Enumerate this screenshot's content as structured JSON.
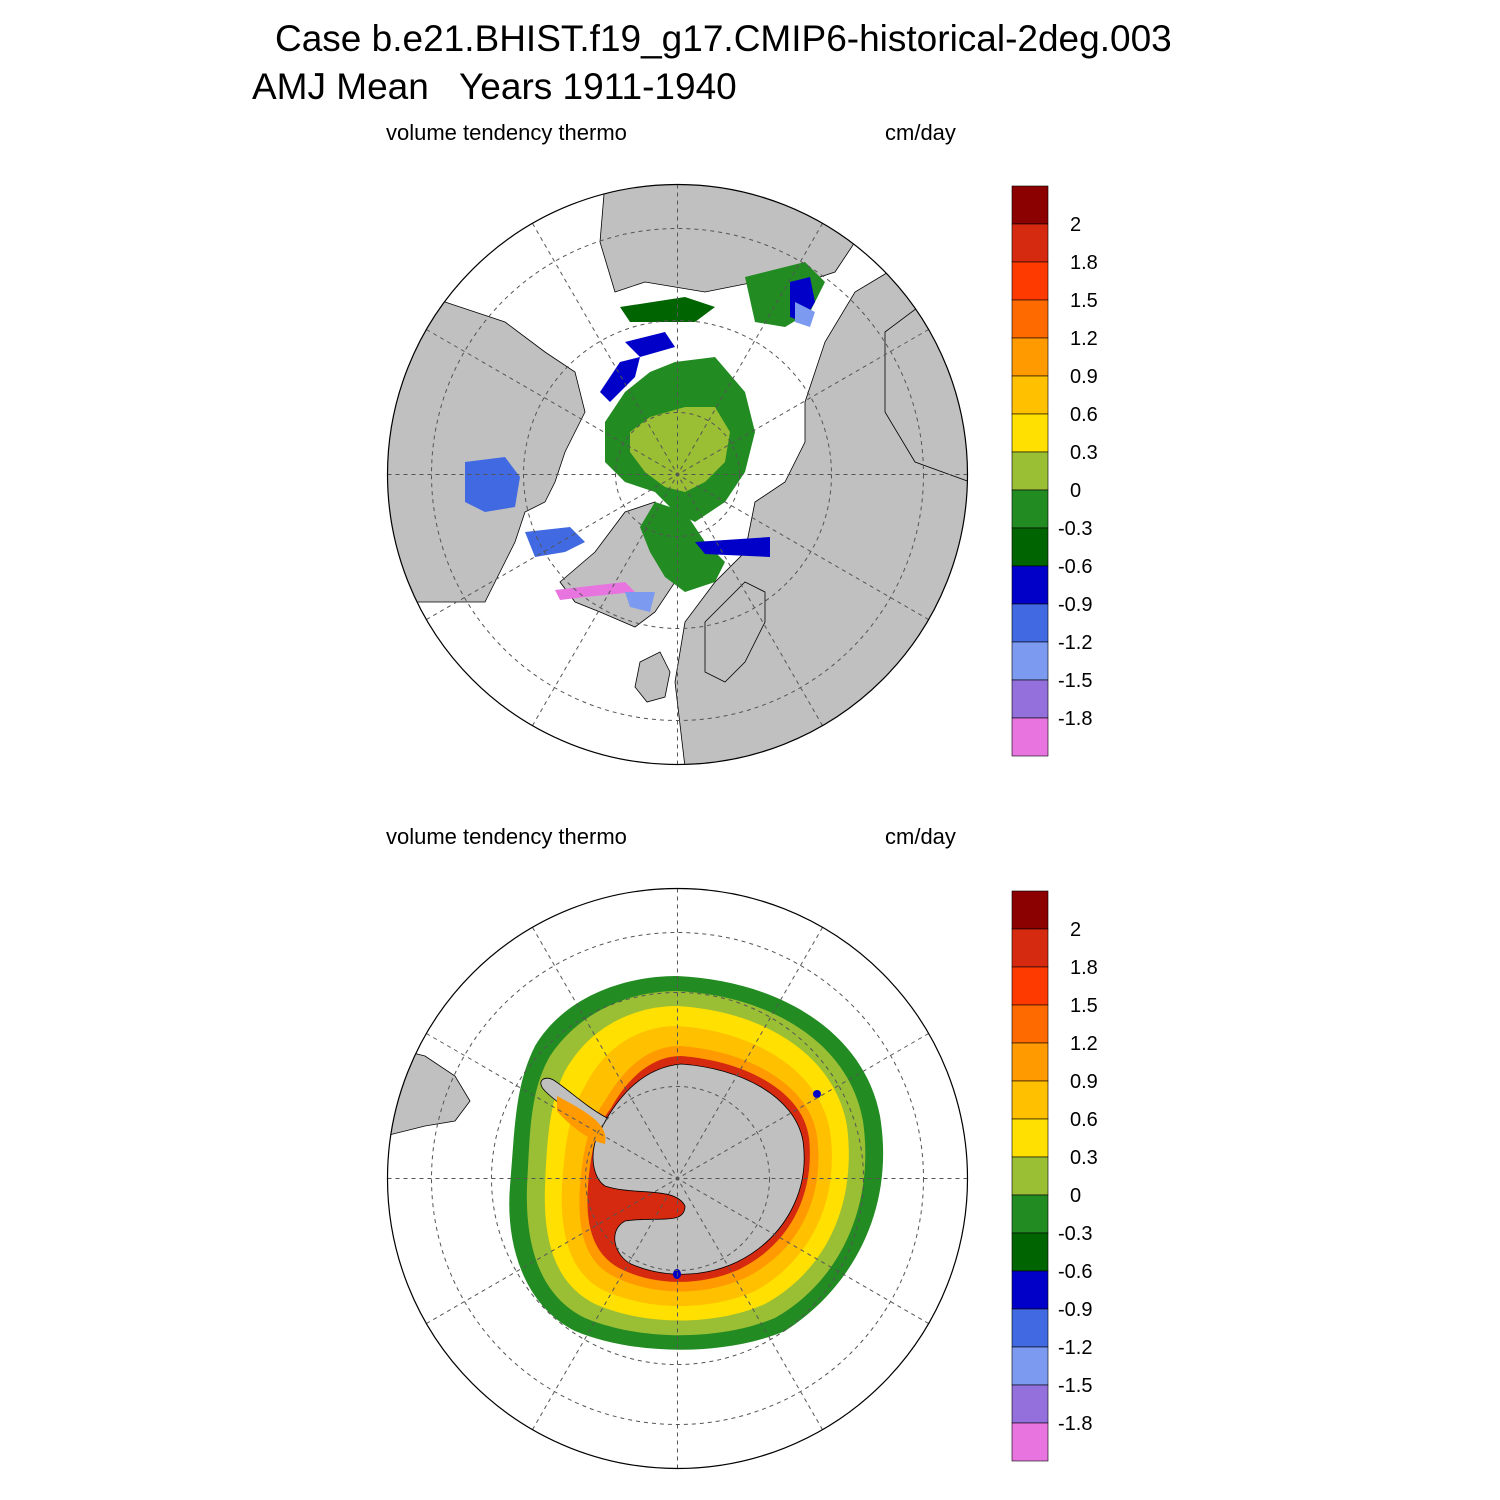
{
  "title": {
    "line1": "Case b.e21.BHIST.f19_g17.CMIP6-historical-2deg.003",
    "line2": "AMJ Mean   Years 1911-1940"
  },
  "panels": [
    {
      "id": "north",
      "left_label": "volume tendency thermo",
      "right_label": "cm/day",
      "hemisphere": "Arctic (north polar stereographic)"
    },
    {
      "id": "south",
      "left_label": "volume tendency thermo",
      "right_label": "cm/day",
      "hemisphere": "Antarctic (south polar stereographic)"
    }
  ],
  "colorbar": {
    "labels": [
      "2",
      "1.8",
      "1.5",
      "1.2",
      "0.9",
      "0.6",
      "0.3",
      "0",
      "-0.3",
      "-0.6",
      "-0.9",
      "-1.2",
      "-1.5",
      "-1.8"
    ],
    "colors": [
      "#8b0000",
      "#d62a10",
      "#ff3a00",
      "#ff6a00",
      "#ff9a00",
      "#ffc000",
      "#ffe000",
      "#9abe34",
      "#228b22",
      "#006400",
      "#0000c8",
      "#4169e1",
      "#7b9af0",
      "#9370db",
      "#e874e0"
    ]
  },
  "map_style": {
    "land_color": "#c0c0c0",
    "ocean_color": "#ffffff",
    "grid_color": "#555555"
  }
}
